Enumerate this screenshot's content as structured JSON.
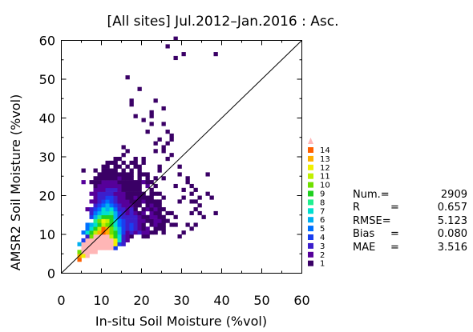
{
  "chart_data": {
    "type": "heatmap",
    "title": "[All sites] Jul.2012–Jan.2016 : Asc.",
    "xlabel": "In-situ Soil Moisture (%vol)",
    "ylabel": "AMSR2 Soil Moisture (%vol)",
    "xlim": [
      0,
      60
    ],
    "ylim": [
      0,
      60
    ],
    "x_ticks": [
      "0",
      "10",
      "20",
      "30",
      "40",
      "50",
      "60"
    ],
    "y_ticks": [
      "0",
      "10",
      "20",
      "30",
      "40",
      "50",
      "60"
    ],
    "bin_size": 1,
    "one_to_one_line": true,
    "grid": false,
    "legend_position": "right",
    "legend_levels": [
      "1",
      "2",
      "3",
      "4",
      "5",
      "6",
      "7",
      "8",
      "9",
      "10",
      "11",
      "12",
      "13",
      "14"
    ],
    "legend_colors": [
      "#3a0066",
      "#56009a",
      "#3c1ecc",
      "#1a3ef0",
      "#0070ff",
      "#00b0f0",
      "#00e0d0",
      "#20f090",
      "#20d020",
      "#70e000",
      "#c0f000",
      "#f0f000",
      "#ffb000",
      "#ff6000"
    ],
    "overflow_color": "#ffb6b6",
    "counts": [
      [
        0,
        0,
        0,
        0,
        0,
        0,
        0,
        0,
        0,
        0,
        0,
        0,
        0,
        0,
        0,
        0,
        0,
        0,
        0,
        0,
        0,
        0,
        0,
        0,
        0,
        0,
        0,
        0,
        0,
        0
      ],
      [
        0,
        0,
        0,
        0,
        0,
        0,
        0,
        0,
        0,
        0,
        0,
        0,
        0,
        0,
        0,
        0,
        0,
        0,
        0,
        0,
        0,
        0,
        0,
        0,
        0,
        0,
        0,
        0,
        0,
        0
      ],
      [
        0,
        0,
        0,
        0,
        0,
        0,
        0,
        0,
        0,
        0,
        0,
        0,
        0,
        0,
        0,
        0,
        0,
        0,
        0,
        0,
        0,
        0,
        0,
        0,
        0,
        0,
        0,
        0,
        0,
        0
      ],
      [
        0,
        0,
        0,
        0,
        14,
        0,
        0,
        0,
        0,
        0,
        0,
        0,
        0,
        0,
        0,
        0,
        0,
        0,
        0,
        0,
        0,
        0,
        0,
        0,
        0,
        0,
        0,
        0,
        0,
        0
      ],
      [
        0,
        0,
        0,
        0,
        13,
        12,
        15,
        0,
        0,
        0,
        0,
        0,
        0,
        0,
        0,
        0,
        0,
        0,
        0,
        0,
        0,
        0,
        0,
        0,
        0,
        0,
        0,
        0,
        0,
        0
      ],
      [
        0,
        0,
        0,
        0,
        10,
        15,
        15,
        15,
        15,
        0,
        0,
        0,
        0,
        0,
        0,
        0,
        0,
        0,
        0,
        0,
        0,
        0,
        0,
        0,
        0,
        0,
        0,
        0,
        0,
        0
      ],
      [
        0,
        0,
        0,
        0,
        0,
        15,
        15,
        15,
        15,
        15,
        15,
        15,
        15,
        4,
        0,
        0,
        0,
        0,
        0,
        0,
        0,
        0,
        0,
        0,
        0,
        0,
        0,
        0,
        0,
        0
      ],
      [
        0,
        0,
        0,
        0,
        6,
        15,
        15,
        15,
        15,
        15,
        15,
        15,
        15,
        12,
        4,
        3,
        0,
        0,
        0,
        0,
        0,
        0,
        0,
        0,
        0,
        0,
        0,
        0,
        0,
        0
      ],
      [
        0,
        0,
        0,
        0,
        0,
        4,
        15,
        15,
        15,
        15,
        15,
        15,
        15,
        12,
        7,
        3,
        2,
        0,
        0,
        0,
        0,
        0,
        0,
        0,
        0,
        0,
        0,
        0,
        0,
        0
      ],
      [
        0,
        0,
        0,
        0,
        0,
        0,
        3,
        10,
        15,
        15,
        15,
        15,
        11,
        9,
        7,
        3,
        2,
        1,
        0,
        0,
        1,
        1,
        0,
        0,
        0,
        0,
        0,
        0,
        0,
        0
      ],
      [
        0,
        0,
        0,
        0,
        0,
        5,
        7,
        9,
        11,
        13,
        14,
        13,
        10,
        9,
        6,
        4,
        2,
        3,
        2,
        3,
        2,
        2,
        1,
        1,
        0,
        1,
        0,
        0,
        0,
        0
      ],
      [
        0,
        0,
        0,
        0,
        0,
        0,
        5,
        7,
        9,
        11,
        14,
        13,
        10,
        8,
        6,
        4,
        3,
        4,
        3,
        2,
        1,
        2,
        0,
        1,
        1,
        1,
        0,
        0,
        0,
        0
      ],
      [
        0,
        0,
        0,
        0,
        0,
        0,
        5,
        6,
        7,
        9,
        11,
        10,
        9,
        7,
        5,
        4,
        3,
        4,
        3,
        2,
        1,
        0,
        1,
        2,
        1,
        1,
        0,
        1,
        1,
        0
      ],
      [
        0,
        0,
        0,
        0,
        0,
        0,
        0,
        0,
        8,
        10,
        12,
        11,
        9,
        7,
        5,
        4,
        3,
        3,
        3,
        2,
        2,
        1,
        1,
        2,
        2,
        1,
        1,
        0,
        0,
        0
      ],
      [
        0,
        0,
        0,
        0,
        0,
        0,
        0,
        4,
        6,
        8,
        9,
        9,
        9,
        6,
        4,
        3,
        3,
        3,
        3,
        2,
        1,
        1,
        2,
        2,
        1,
        1,
        0,
        0,
        1,
        0
      ],
      [
        0,
        0,
        0,
        0,
        0,
        0,
        0,
        3,
        5,
        6,
        7,
        7,
        8,
        6,
        4,
        3,
        2,
        3,
        2,
        1,
        2,
        0,
        2,
        1,
        1,
        0,
        1,
        1,
        0,
        0
      ],
      [
        0,
        0,
        0,
        0,
        0,
        0,
        2,
        3,
        4,
        5,
        7,
        6,
        7,
        5,
        3,
        3,
        2,
        3,
        1,
        0,
        1,
        2,
        1,
        2,
        1,
        1,
        0,
        0,
        0,
        0
      ],
      [
        0,
        0,
        0,
        0,
        0,
        0,
        0,
        0,
        3,
        4,
        5,
        6,
        5,
        4,
        3,
        2,
        2,
        2,
        1,
        1,
        0,
        1,
        2,
        1,
        1,
        0,
        0,
        0,
        0,
        0
      ],
      [
        0,
        0,
        0,
        0,
        0,
        0,
        0,
        2,
        2,
        3,
        4,
        5,
        4,
        3,
        2,
        2,
        2,
        1,
        1,
        1,
        2,
        1,
        1,
        1,
        1,
        0,
        0,
        0,
        0,
        0
      ],
      [
        0,
        0,
        0,
        0,
        0,
        0,
        0,
        0,
        2,
        3,
        3,
        4,
        4,
        3,
        2,
        2,
        1,
        1,
        2,
        1,
        1,
        1,
        1,
        0,
        0,
        1,
        0,
        0,
        0,
        0
      ],
      [
        0,
        0,
        0,
        0,
        0,
        0,
        0,
        2,
        2,
        3,
        3,
        3,
        3,
        2,
        2,
        2,
        1,
        1,
        1,
        1,
        1,
        0,
        1,
        1,
        1,
        0,
        0,
        0,
        0,
        0
      ],
      [
        0,
        0,
        0,
        0,
        0,
        0,
        0,
        0,
        2,
        2,
        2,
        3,
        3,
        3,
        2,
        1,
        1,
        1,
        1,
        1,
        0,
        0,
        1,
        0,
        0,
        0,
        0,
        0,
        0,
        0
      ],
      [
        0,
        0,
        0,
        0,
        0,
        0,
        0,
        0,
        1,
        2,
        2,
        2,
        2,
        2,
        2,
        1,
        1,
        1,
        1,
        1,
        0,
        2,
        0,
        1,
        0,
        0,
        0,
        0,
        0,
        0
      ],
      [
        0,
        0,
        0,
        0,
        0,
        2,
        0,
        1,
        1,
        1,
        2,
        2,
        2,
        2,
        1,
        1,
        1,
        1,
        1,
        1,
        2,
        1,
        1,
        0,
        0,
        0,
        0,
        0,
        0,
        0
      ],
      [
        0,
        0,
        0,
        0,
        0,
        0,
        0,
        0,
        1,
        1,
        1,
        1,
        1,
        1,
        2,
        1,
        1,
        1,
        0,
        1,
        0,
        1,
        0,
        1,
        0,
        1,
        0,
        0,
        0,
        0
      ],
      [
        0,
        0,
        0,
        0,
        0,
        0,
        0,
        0,
        0,
        1,
        1,
        1,
        1,
        1,
        1,
        1,
        1,
        1,
        0,
        1,
        1,
        1,
        0,
        0,
        0,
        0,
        0,
        0,
        0,
        0
      ],
      [
        0,
        0,
        0,
        0,
        0,
        1,
        0,
        0,
        1,
        0,
        1,
        1,
        1,
        1,
        0,
        1,
        0,
        1,
        0,
        1,
        0,
        0,
        0,
        0,
        1,
        0,
        0,
        0,
        0,
        0
      ],
      [
        0,
        0,
        0,
        0,
        0,
        0,
        0,
        0,
        0,
        0,
        1,
        1,
        0,
        1,
        1,
        0,
        1,
        0,
        1,
        1,
        0,
        0,
        0,
        0,
        1,
        0,
        0,
        0,
        0,
        0
      ],
      [
        0,
        0,
        0,
        0,
        0,
        0,
        0,
        0,
        0,
        0,
        0,
        1,
        1,
        1,
        0,
        1,
        0,
        1,
        1,
        0,
        1,
        0,
        0,
        0,
        0,
        0,
        0,
        0,
        0,
        0
      ],
      [
        0,
        0,
        0,
        0,
        0,
        0,
        0,
        0,
        0,
        0,
        0,
        0,
        0,
        1,
        1,
        0,
        0,
        0,
        1,
        0,
        1,
        0,
        0,
        0,
        0,
        0,
        0,
        0,
        0,
        0
      ]
    ],
    "sparse_points": [
      [
        26,
        58
      ],
      [
        28,
        60
      ],
      [
        30,
        56
      ],
      [
        28,
        55
      ],
      [
        38,
        56
      ],
      [
        16,
        50
      ],
      [
        19,
        47
      ],
      [
        17,
        44
      ],
      [
        17,
        43
      ],
      [
        23,
        44
      ],
      [
        25,
        42
      ],
      [
        22,
        41
      ],
      [
        20,
        39
      ],
      [
        22,
        38
      ],
      [
        25,
        38
      ],
      [
        26,
        36
      ],
      [
        21,
        36
      ],
      [
        27,
        35
      ],
      [
        24,
        34
      ],
      [
        26,
        33
      ],
      [
        23,
        33
      ],
      [
        25,
        32
      ],
      [
        15,
        32
      ],
      [
        25,
        31
      ],
      [
        27,
        30
      ],
      [
        23,
        31
      ],
      [
        15,
        30
      ],
      [
        16,
        31
      ],
      [
        36,
        25
      ],
      [
        29,
        25
      ],
      [
        27,
        34
      ],
      [
        22,
        40
      ],
      [
        18,
        40
      ],
      [
        31,
        23
      ],
      [
        30,
        21
      ],
      [
        26,
        29
      ],
      [
        32,
        22
      ],
      [
        31,
        24
      ],
      [
        29,
        27
      ],
      [
        28,
        22
      ],
      [
        30,
        19
      ],
      [
        32,
        20
      ],
      [
        33,
        21
      ],
      [
        34,
        19
      ],
      [
        32,
        18
      ],
      [
        33,
        16
      ],
      [
        32,
        15
      ],
      [
        35,
        14
      ],
      [
        34,
        15
      ],
      [
        33,
        12
      ],
      [
        32,
        11
      ],
      [
        31,
        12
      ],
      [
        30,
        10
      ],
      [
        29,
        9
      ],
      [
        36,
        20
      ],
      [
        37,
        19
      ],
      [
        34,
        17
      ],
      [
        38,
        15
      ],
      [
        29,
        18
      ],
      [
        33,
        18
      ]
    ],
    "total_count": "2909",
    "stats": [
      {
        "label": "Num.=",
        "eq": "",
        "value": "2909"
      },
      {
        "label": "R",
        "eq": "=",
        "value": "0.657"
      },
      {
        "label": "RMSE=",
        "eq": "",
        "value": "5.123"
      },
      {
        "label": "Bias",
        "eq": "=",
        "value": "0.080"
      },
      {
        "label": "MAE",
        "eq": "=",
        "value": "3.516"
      }
    ]
  }
}
